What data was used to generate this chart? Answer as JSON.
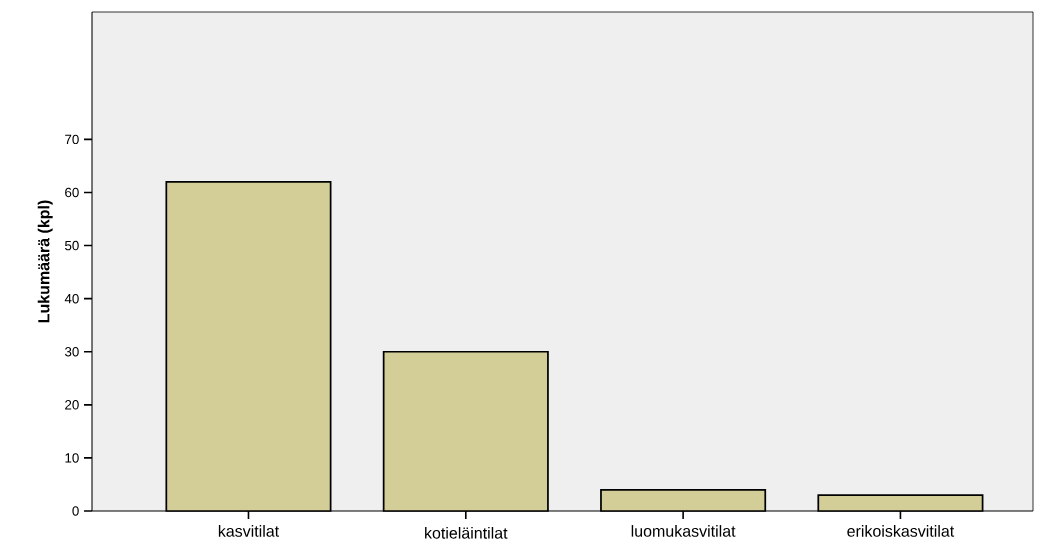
{
  "chart_data": {
    "type": "bar",
    "ylabel": "Lukumäärä (kpl)",
    "categories": [
      "kasvitilat",
      "kotieläintilat",
      "luomukasvitilat",
      "erikoiskasvitilat"
    ],
    "values": [
      62,
      30,
      4,
      3
    ],
    "color": "#d3cd98",
    "ylim": [
      0,
      94
    ],
    "yticks": [
      0,
      10,
      20,
      30,
      40,
      50,
      60,
      70
    ]
  }
}
